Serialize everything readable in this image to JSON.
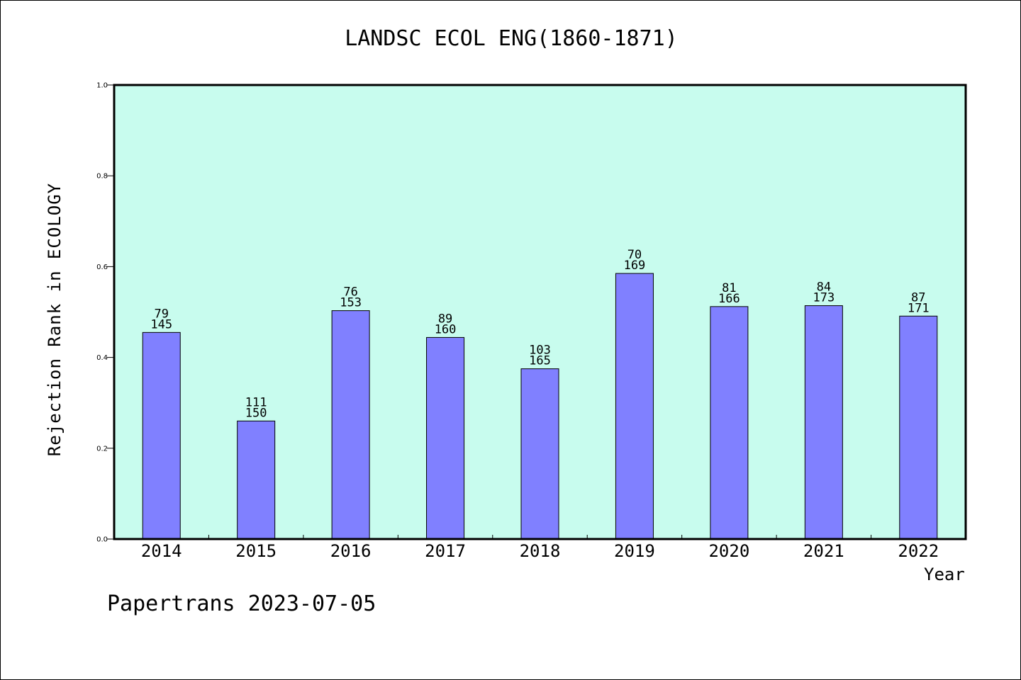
{
  "colors": {
    "plot_background": "#c8fcee",
    "bar_fill": "#8080ff",
    "axis": "#000000"
  },
  "chart_data": {
    "type": "bar",
    "title": "LANDSC ECOL ENG(1860-1871)",
    "xlabel": "Year",
    "ylabel": "Rejection Rank in ECOLOGY",
    "ylim": [
      0.0,
      1.0
    ],
    "yticks": [
      "0.0",
      "0.2",
      "0.4",
      "0.6",
      "0.8",
      "1.0"
    ],
    "categories": [
      "2014",
      "2015",
      "2016",
      "2017",
      "2018",
      "2019",
      "2020",
      "2021",
      "2022"
    ],
    "values": [
      0.455,
      0.26,
      0.503,
      0.444,
      0.375,
      0.585,
      0.512,
      0.514,
      0.491
    ],
    "labels_top": [
      "79",
      "111",
      "76",
      "89",
      "103",
      "70",
      "81",
      "84",
      "87"
    ],
    "labels_bottom": [
      "145",
      "150",
      "153",
      "160",
      "165",
      "169",
      "166",
      "173",
      "171"
    ],
    "grid": false,
    "legend": "none"
  },
  "footer": "Papertrans 2023-07-05"
}
